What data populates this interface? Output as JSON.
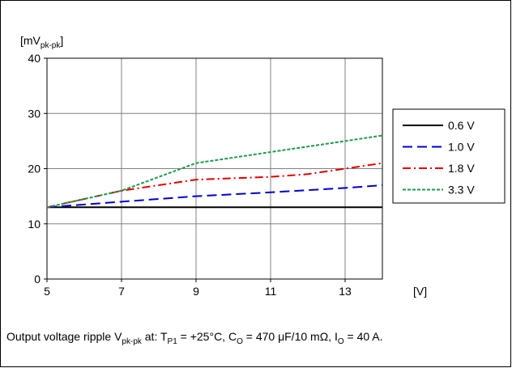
{
  "chart_data": {
    "type": "line",
    "ylabel_main": "[mV",
    "ylabel_sub": "pk-pk",
    "ylabel_end": "]",
    "xlabel": "[V]",
    "xlim": [
      5,
      14
    ],
    "ylim": [
      0,
      40
    ],
    "xticks": [
      5,
      7,
      9,
      11,
      13
    ],
    "yticks": [
      0,
      10,
      20,
      30,
      40
    ],
    "grid": true,
    "legend_position": "right",
    "series": [
      {
        "name": "0.6 V",
        "color": "#000000",
        "dash": "solid",
        "x": [
          5,
          7,
          9,
          11,
          13,
          14
        ],
        "y": [
          13,
          13,
          13,
          13,
          13,
          13
        ]
      },
      {
        "name": "1.0 V",
        "color": "#0000cc",
        "dash": "long-dash",
        "x": [
          5,
          7,
          9,
          11,
          13,
          14
        ],
        "y": [
          13,
          14,
          15,
          15.7,
          16.5,
          17
        ]
      },
      {
        "name": "1.8 V",
        "color": "#e00000",
        "dash": "dash-dot",
        "x": [
          5,
          7,
          9,
          11,
          12,
          13,
          14
        ],
        "y": [
          13,
          16,
          18,
          18.5,
          19,
          20,
          21
        ]
      },
      {
        "name": "3.3 V",
        "color": "#1e9a4b",
        "dash": "short-dash",
        "x": [
          5,
          7,
          9,
          11,
          13,
          14
        ],
        "y": [
          13,
          16,
          21,
          23,
          25,
          26
        ]
      }
    ]
  },
  "caption": {
    "prefix": "Output voltage ripple V",
    "v_sub": "pk-pk",
    "at": " at: T",
    "t_sub": "P1",
    "temp": " = +25°C, C",
    "c_sub": "O",
    "cap": " = 470 μF/10 mΩ, I",
    "i_sub": "O",
    "current": " = 40 A."
  }
}
